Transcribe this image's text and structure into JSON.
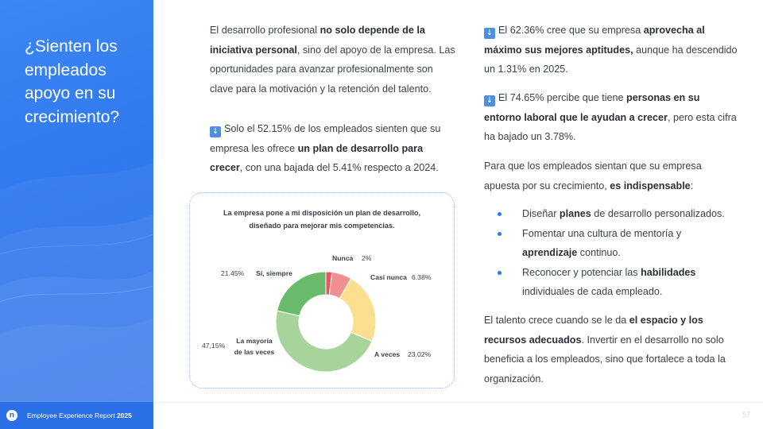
{
  "side": {
    "title": "¿Sienten los empleados apoyo en su crecimiento?"
  },
  "footer": {
    "logo": "n",
    "report": "Employee Experience Report",
    "year": "2025",
    "page": "57"
  },
  "left": {
    "p1": [
      {
        "t": "El desarrollo profesional ",
        "b": false
      },
      {
        "t": "no solo depende de la iniciativa personal",
        "b": true
      },
      {
        "t": ", sino del apoyo de la empresa. Las oportunidades para avanzar profesionalmente son clave para la motivación y la retención del talento.",
        "b": false
      }
    ],
    "p2": [
      {
        "t": "Solo el 52.15% de los empleados sienten que su empresa les ofrece ",
        "b": false
      },
      {
        "t": "un plan de desarrollo para crecer",
        "b": true
      },
      {
        "t": ", con una bajada del 5.41% respecto a 2024.",
        "b": false
      }
    ]
  },
  "right": {
    "p1": [
      {
        "t": "El 62.36% cree que su empresa ",
        "b": false
      },
      {
        "t": "aprovecha al máximo sus mejores aptitudes,",
        "b": true
      },
      {
        "t": " aunque ha descendido un 1.31% en 2025.",
        "b": false
      }
    ],
    "p2": [
      {
        "t": "El 74.65% percibe que tiene ",
        "b": false
      },
      {
        "t": "personas en su entorno laboral que le ayudan a crecer",
        "b": true
      },
      {
        "t": ", pero esta cifra ha bajado un 3.78%.",
        "b": false
      }
    ],
    "p3": [
      {
        "t": "Para que los empleados sientan que su empresa apuesta por su crecimiento, ",
        "b": false
      },
      {
        "t": "es indispensable",
        "b": true
      },
      {
        "t": ":",
        "b": false
      }
    ],
    "bullets": [
      [
        {
          "t": "Diseñar ",
          "b": false
        },
        {
          "t": "planes",
          "b": true
        },
        {
          "t": " de desarrollo personalizados.",
          "b": false
        }
      ],
      [
        {
          "t": "Fomentar una cultura de mentoría y ",
          "b": false
        },
        {
          "t": "aprendizaje",
          "b": true
        },
        {
          "t": " continuo.",
          "b": false
        }
      ],
      [
        {
          "t": "Reconocer y potenciar las ",
          "b": false
        },
        {
          "t": "habilidades",
          "b": true
        },
        {
          "t": " individuales de cada empleado.",
          "b": false
        }
      ]
    ],
    "p4": [
      {
        "t": "El talento crece cuando se le da ",
        "b": false
      },
      {
        "t": "el espacio y los recursos adecuados",
        "b": true
      },
      {
        "t": ". Invertir en el desarrollo no solo beneficia a los empleados, sino que fortalece a toda la organización.",
        "b": false
      }
    ]
  },
  "icons": {
    "down_arrow": "down-arrow-icon"
  },
  "colors": {
    "panel_blue": "#2f78ee",
    "nunca": "#e8555e",
    "casi_nunca": "#ef8f8f",
    "a_veces": "#fbdf8e",
    "mayoria": "#a6d49a",
    "siempre": "#69bb6b"
  },
  "chart_data": {
    "type": "pie",
    "variant": "donut",
    "title": "La empresa pone a mi disposición un plan de desarrollo, diseñado para mejorar mis competencias.",
    "slices": [
      {
        "label": "Nunca",
        "value": 2,
        "value_label": "2%",
        "color": "#e8555e"
      },
      {
        "label": "Casi nunca",
        "value": 6.38,
        "value_label": "6.38%",
        "color": "#ef8f8f"
      },
      {
        "label": "A veces",
        "value": 23.02,
        "value_label": "23.02%",
        "color": "#fbdf8e"
      },
      {
        "label": "La mayoría de las veces",
        "value": 47.15,
        "value_label": "47,15%",
        "color": "#a6d49a"
      },
      {
        "label": "Sí, siempre",
        "value": 21.45,
        "value_label": "21.45%",
        "color": "#69bb6b"
      }
    ]
  }
}
